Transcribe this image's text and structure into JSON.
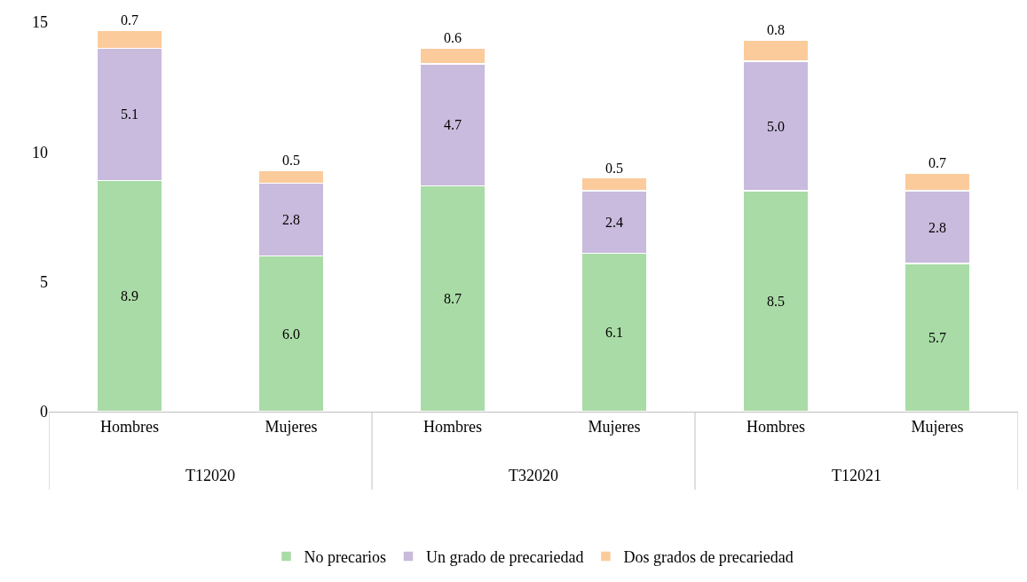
{
  "chart_data": {
    "type": "bar",
    "stacked": true,
    "categories": [
      "Hombres",
      "Mujeres",
      "Hombres",
      "Mujeres",
      "Hombres",
      "Mujeres"
    ],
    "series": [
      {
        "name": "No precarios",
        "color": "#a9dba6",
        "values": [
          8.9,
          6.0,
          8.7,
          6.1,
          8.5,
          5.7
        ],
        "value_labels": [
          "8.9",
          "6.0",
          "8.7",
          "6.1",
          "8.5",
          "5.7"
        ]
      },
      {
        "name": "Un grado de precariedad",
        "color": "#c9bbdd",
        "values": [
          5.1,
          2.8,
          4.7,
          2.4,
          5.0,
          2.8
        ],
        "value_labels": [
          "5.1",
          "2.8",
          "4.7",
          "2.4",
          "5.0",
          "2.8"
        ]
      },
      {
        "name": "Dos grados de precariedad",
        "color": "#fbcb9c",
        "values": [
          0.7,
          0.5,
          0.6,
          0.5,
          0.8,
          0.7
        ],
        "value_labels": [
          "0.7",
          "0.5",
          "0.6",
          "0.5",
          "0.8",
          "0.7"
        ]
      }
    ],
    "ylim": [
      0,
      15
    ],
    "yticks": [
      0,
      5,
      10,
      15
    ],
    "legend": "bottom",
    "annotations": [
      "T12020",
      "T32020",
      "T12021"
    ]
  }
}
